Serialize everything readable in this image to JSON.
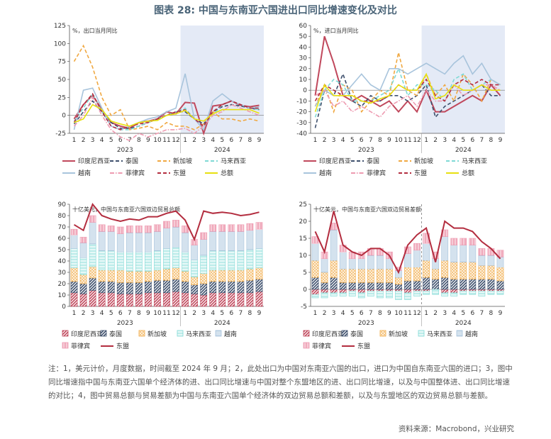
{
  "title": "图表 28:  中国与东南亚六国进出口同比增速变化及对比",
  "notes": "注：1，美元计价，月度数据，时间截至 2024 年 9 月；2，此处出口为中国对东南亚六国的出口，进口为中国自东南亚六国的进口；3，图中同比增速指中国与东南亚六国单个经济体的进、出口同比增速与中国对整个东盟地区的进、出口同比增速，以及与中国整体进、出口同比增速的对比；4，图中贸易总额与贸易差额为中国与东南亚六国单个经济体的双边贸易总额和差额，以及与东盟地区的双边贸易总额与差额。",
  "source": "资料来源：Macrobond，兴业研究",
  "colors": {
    "idn": "#c0485c",
    "tha": "#3d4f6c",
    "sgp": "#f0a841",
    "mys": "#7fd9d5",
    "vnm": "#a8c4dc",
    "phl": "#ee9bb1",
    "asean": "#b32d3f",
    "total": "#e7e010",
    "highlight": "#e4eaf6"
  },
  "chart_data": [
    {
      "type": "line",
      "unit_label": "%，出口当月同比",
      "x_tick_labels": [
        "1",
        "2",
        "3",
        "4",
        "5",
        "6",
        "7",
        "8",
        "9",
        "10",
        "11",
        "12",
        "1",
        "2",
        "3",
        "4",
        "5",
        "6",
        "7",
        "8",
        "9"
      ],
      "year_labels": [
        "2023",
        "2024"
      ],
      "ylim": [
        -25,
        125
      ],
      "yticks": [
        -25,
        0,
        25,
        50,
        75,
        100,
        125
      ],
      "series": [
        {
          "name": "印度尼西亚",
          "key": "idn",
          "style": "solid",
          "values": [
            -5,
            15,
            28,
            8,
            -10,
            -15,
            -18,
            -10,
            -8,
            -5,
            5,
            2,
            18,
            17,
            -25,
            13,
            15,
            20,
            14,
            12,
            14
          ]
        },
        {
          "name": "泰国",
          "key": "tha",
          "style": "dashed",
          "values": [
            -12,
            5,
            20,
            5,
            -10,
            -18,
            -18,
            -15,
            -10,
            -5,
            0,
            5,
            5,
            -5,
            -12,
            5,
            12,
            15,
            13,
            10,
            8
          ]
        },
        {
          "name": "新加坡",
          "key": "sgp",
          "style": "dashed",
          "values": [
            75,
            97,
            67,
            25,
            0,
            8,
            -20,
            -18,
            -15,
            -20,
            -10,
            -15,
            -15,
            -20,
            -12,
            5,
            -5,
            -5,
            -8,
            -5,
            -8
          ]
        },
        {
          "name": "马来西亚",
          "key": "mys",
          "style": "dashed",
          "values": [
            -8,
            10,
            30,
            5,
            -15,
            -20,
            -20,
            -15,
            -10,
            -5,
            0,
            5,
            10,
            -5,
            -15,
            0,
            15,
            20,
            15,
            10,
            8
          ]
        },
        {
          "name": "越南",
          "key": "vnm",
          "style": "solid",
          "values": [
            -20,
            35,
            38,
            10,
            -15,
            -20,
            -15,
            -10,
            -5,
            -2,
            5,
            10,
            58,
            -5,
            -20,
            20,
            30,
            20,
            15,
            10,
            12
          ]
        },
        {
          "name": "菲律宾",
          "key": "phl",
          "style": "dashdot",
          "values": [
            -15,
            0,
            25,
            0,
            -20,
            -30,
            -35,
            -25,
            -30,
            -25,
            -20,
            -20,
            -18,
            -25,
            -15,
            0,
            5,
            15,
            10,
            5,
            0
          ]
        },
        {
          "name": "东盟",
          "key": "asean",
          "style": "dashed",
          "values": [
            -10,
            15,
            30,
            5,
            -15,
            -20,
            -15,
            -12,
            -10,
            -5,
            0,
            5,
            8,
            -5,
            -15,
            5,
            15,
            20,
            15,
            10,
            10
          ]
        },
        {
          "name": "总额",
          "key": "total",
          "style": "solid",
          "values": [
            -10,
            -5,
            15,
            8,
            -8,
            -12,
            -15,
            -10,
            -8,
            -7,
            0,
            2,
            7,
            -5,
            -8,
            2,
            8,
            8,
            8,
            8,
            3
          ]
        }
      ]
    },
    {
      "type": "line",
      "unit_label": "%，进口当月同比",
      "x_tick_labels": [
        "1",
        "2",
        "3",
        "4",
        "5",
        "6",
        "7",
        "8",
        "9",
        "10",
        "11",
        "12",
        "1",
        "2",
        "3",
        "4",
        "5",
        "6",
        "7",
        "8",
        "9"
      ],
      "year_labels": [
        "2023",
        "2024"
      ],
      "ylim": [
        -40,
        60
      ],
      "yticks": [
        -40,
        -30,
        -20,
        -10,
        0,
        10,
        20,
        30,
        40,
        50,
        60
      ],
      "series": [
        {
          "name": "印度尼西亚",
          "key": "idn",
          "style": "solid",
          "values": [
            -5,
            50,
            25,
            -5,
            -10,
            -5,
            -10,
            -15,
            -10,
            -20,
            -10,
            -20,
            0,
            -20,
            -20,
            -15,
            -10,
            -5,
            -10,
            5,
            -5
          ]
        },
        {
          "name": "泰国",
          "key": "tha",
          "style": "dashed",
          "values": [
            -35,
            0,
            -5,
            15,
            -10,
            -15,
            -5,
            -10,
            -5,
            -5,
            -10,
            -5,
            5,
            -25,
            -15,
            -10,
            -5,
            0,
            5,
            -5,
            -5
          ]
        },
        {
          "name": "新加坡",
          "key": "sgp",
          "style": "dashed",
          "values": [
            -15,
            5,
            -20,
            5,
            0,
            -20,
            -10,
            0,
            -5,
            35,
            0,
            -5,
            15,
            -5,
            5,
            -10,
            15,
            5,
            -10,
            10,
            5
          ]
        },
        {
          "name": "马来西亚",
          "key": "mys",
          "style": "dashed",
          "values": [
            -25,
            0,
            10,
            5,
            -10,
            -10,
            -10,
            -5,
            0,
            20,
            -5,
            5,
            5,
            0,
            -10,
            10,
            15,
            0,
            5,
            10,
            5
          ]
        },
        {
          "name": "越南",
          "key": "vnm",
          "style": "solid",
          "values": [
            -15,
            0,
            -5,
            -5,
            5,
            15,
            5,
            0,
            20,
            20,
            15,
            20,
            25,
            20,
            15,
            25,
            32,
            15,
            25,
            10,
            5
          ]
        },
        {
          "name": "菲律宾",
          "key": "phl",
          "style": "dashdot",
          "values": [
            -5,
            0,
            -15,
            -10,
            -20,
            -15,
            -20,
            -25,
            -15,
            -10,
            -5,
            -15,
            0,
            -10,
            -10,
            5,
            -5,
            0,
            5,
            5,
            0
          ]
        },
        {
          "name": "东盟",
          "key": "asean",
          "style": "dashed",
          "values": [
            -10,
            5,
            0,
            -5,
            -5,
            -10,
            -10,
            -10,
            -5,
            5,
            0,
            0,
            10,
            -5,
            -10,
            5,
            10,
            5,
            10,
            5,
            5
          ]
        },
        {
          "name": "总额",
          "key": "total",
          "style": "solid",
          "values": [
            -20,
            5,
            -5,
            -5,
            -5,
            -10,
            -12,
            -8,
            -5,
            5,
            0,
            0,
            15,
            -8,
            -5,
            5,
            0,
            0,
            5,
            0,
            0
          ]
        }
      ]
    },
    {
      "type": "bar",
      "stacked": true,
      "unit_label": "十亿美元，中国与东南亚六国双边贸易总额",
      "x_tick_labels": [
        "1",
        "2",
        "3",
        "4",
        "5",
        "6",
        "7",
        "8",
        "9",
        "10",
        "11",
        "12",
        "1",
        "2",
        "3",
        "4",
        "5",
        "6",
        "7",
        "8",
        "9"
      ],
      "year_labels": [
        "2023",
        "2024"
      ],
      "ylim": [
        0,
        90
      ],
      "yticks": [
        0,
        10,
        20,
        30,
        40,
        50,
        60,
        70,
        80,
        90
      ],
      "series": [
        {
          "name": "印度尼西亚",
          "key": "idn",
          "values": [
            12,
            11,
            14,
            12,
            12,
            11,
            11,
            11,
            12,
            12,
            12,
            13,
            12,
            11,
            10,
            12,
            12,
            12,
            12,
            12,
            13
          ]
        },
        {
          "name": "泰国",
          "key": "tha",
          "values": [
            10,
            9,
            11,
            10,
            10,
            10,
            10,
            10,
            10,
            11,
            11,
            11,
            10,
            8,
            10,
            10,
            10,
            10,
            10,
            11,
            11
          ]
        },
        {
          "name": "新加坡",
          "key": "sgp",
          "values": [
            12,
            8,
            10,
            10,
            10,
            11,
            10,
            10,
            9,
            9,
            10,
            10,
            9,
            7,
            9,
            10,
            10,
            10,
            10,
            10,
            10
          ]
        },
        {
          "name": "马来西亚",
          "key": "mys",
          "values": [
            17,
            15,
            20,
            17,
            17,
            16,
            17,
            17,
            17,
            17,
            18,
            18,
            17,
            15,
            16,
            17,
            17,
            17,
            17,
            17,
            17
          ]
        },
        {
          "name": "越南",
          "key": "vnm",
          "values": [
            12,
            13,
            19,
            17,
            17,
            16,
            17,
            17,
            17,
            17,
            18,
            18,
            17,
            13,
            14,
            17,
            17,
            17,
            17,
            17,
            17
          ]
        },
        {
          "name": "菲律宾",
          "key": "phl",
          "values": [
            5,
            5,
            6,
            6,
            5,
            6,
            6,
            6,
            6,
            6,
            6,
            6,
            6,
            5,
            6,
            6,
            6,
            6,
            6,
            6,
            6
          ]
        }
      ],
      "line": {
        "name": "东盟",
        "key": "asean",
        "values": [
          72,
          67,
          90,
          80,
          77,
          75,
          77,
          76,
          79,
          79,
          82,
          84,
          76,
          59,
          84,
          82,
          83,
          82,
          80,
          81,
          83
        ]
      }
    },
    {
      "type": "bar",
      "stacked": true,
      "unit_label": "十亿美元，中国与东南亚六国双边贸易差额",
      "x_tick_labels": [
        "1",
        "2",
        "3",
        "4",
        "5",
        "6",
        "7",
        "8",
        "9",
        "10",
        "11",
        "12",
        "1",
        "2",
        "3",
        "4",
        "5",
        "6",
        "7",
        "8",
        "9"
      ],
      "year_labels": [
        "2023",
        "2024"
      ],
      "ylim": [
        -5,
        25
      ],
      "yticks": [
        -5,
        0,
        5,
        10,
        15,
        20,
        25
      ],
      "series": [
        {
          "name": "印度尼西亚",
          "key": "idn",
          "values": [
            -1.5,
            -1,
            -1,
            -1,
            -0.5,
            -1,
            -0.5,
            -0.5,
            -0.5,
            -0.5,
            -1,
            -0.5,
            -0.5,
            0,
            -1,
            -1,
            -0.5,
            -0.5,
            -0.5,
            -0.5,
            -0.5
          ]
        },
        {
          "name": "泰国",
          "key": "tha",
          "values": [
            3.5,
            2,
            3.5,
            2,
            2,
            2,
            2,
            2,
            2,
            1.5,
            2.5,
            2.5,
            3.5,
            3,
            3.5,
            3,
            3,
            3,
            3,
            3,
            2.5
          ]
        },
        {
          "name": "新加坡",
          "key": "sgp",
          "values": [
            5,
            3,
            5,
            4,
            4,
            4,
            4,
            4,
            4,
            2,
            4,
            4,
            5,
            3,
            5,
            5,
            5,
            5,
            4,
            4,
            4
          ]
        },
        {
          "name": "马来西亚",
          "key": "mys",
          "values": [
            -1,
            -1.5,
            -1,
            -1,
            -1.5,
            -1.5,
            -1.5,
            -2,
            -2,
            -2.5,
            -2,
            -1.5,
            -1,
            -1.5,
            -1,
            -1,
            -1,
            -1,
            -1.5,
            -1,
            -1
          ]
        },
        {
          "name": "越南",
          "key": "vnm",
          "values": [
            5,
            4,
            9,
            5,
            3,
            3,
            4,
            4,
            3,
            2,
            4,
            5,
            5,
            3,
            7,
            5,
            5,
            5,
            3,
            3,
            3
          ]
        },
        {
          "name": "菲律宾",
          "key": "phl",
          "values": [
            2,
            2,
            2,
            2,
            2,
            2,
            2,
            2,
            2,
            1,
            2,
            2,
            3,
            2,
            2,
            2,
            2,
            2,
            2,
            2,
            2
          ]
        }
      ],
      "line": {
        "name": "东盟",
        "key": "asean",
        "values": [
          17,
          11,
          23,
          13,
          11,
          10,
          12,
          12,
          10,
          5,
          13,
          16,
          18,
          8,
          20,
          18,
          18,
          17,
          14,
          12,
          9
        ]
      }
    }
  ]
}
